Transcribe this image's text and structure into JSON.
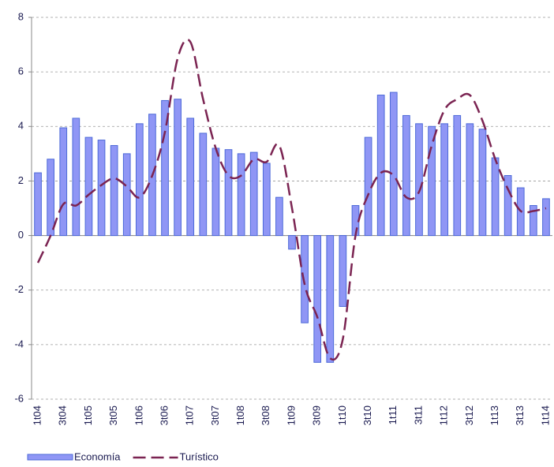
{
  "chart_data": {
    "type": "bar",
    "categories": [
      "1t04",
      null,
      "3t04",
      null,
      "1t05",
      null,
      "3t05",
      null,
      "1t06",
      null,
      "3t06",
      null,
      "1t07",
      null,
      "3t07",
      null,
      "1t08",
      null,
      "3t08",
      null,
      "1t09",
      null,
      "3t09",
      null,
      "1t10",
      null,
      "3t10",
      null,
      "1t11",
      null,
      "3t11",
      null,
      "1t12",
      null,
      "3t12",
      null,
      "1t13",
      null,
      "3t13",
      null,
      "1t14"
    ],
    "series": [
      {
        "name": "Economía",
        "type": "bar",
        "color": "#8f96f5",
        "values": [
          2.3,
          2.8,
          3.95,
          4.3,
          3.6,
          3.5,
          3.3,
          3.0,
          4.1,
          4.45,
          4.95,
          5.0,
          4.3,
          3.75,
          3.2,
          3.15,
          3.0,
          3.05,
          2.65,
          1.4,
          -0.5,
          -3.2,
          -4.65,
          -4.65,
          -2.6,
          1.1,
          3.6,
          5.15,
          5.25,
          4.4,
          4.1,
          4.0,
          4.1,
          4.4,
          4.1,
          3.9,
          2.85,
          2.2,
          1.75,
          1.1,
          1.35
        ]
      },
      {
        "name": "Turístico",
        "type": "line",
        "color": "#7b2452",
        "values": [
          -1.0,
          0.0,
          1.15,
          1.1,
          1.5,
          1.85,
          2.1,
          1.8,
          1.4,
          2.2,
          3.8,
          6.5,
          7.1,
          5.0,
          3.2,
          2.2,
          2.2,
          2.8,
          2.7,
          3.3,
          1.0,
          -1.8,
          -3.0,
          -4.5,
          -3.8,
          0.0,
          1.5,
          2.3,
          2.2,
          1.4,
          1.6,
          3.3,
          4.6,
          5.0,
          5.15,
          4.2,
          2.8,
          1.7,
          0.9,
          0.9,
          1.0
        ]
      }
    ],
    "ylim": [
      -6,
      8
    ],
    "yticks": [
      -6,
      -4,
      -2,
      0,
      2,
      4,
      6,
      8
    ],
    "grid": true
  }
}
